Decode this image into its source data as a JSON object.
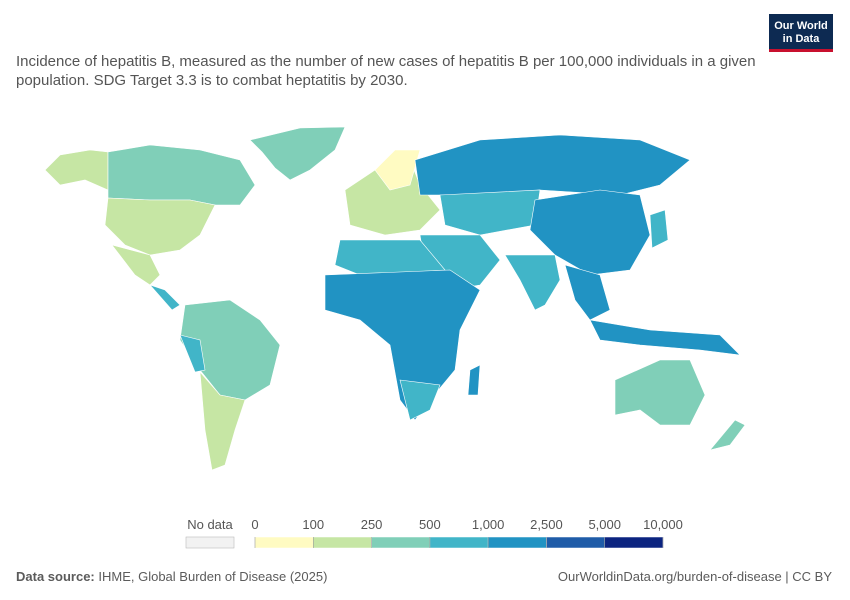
{
  "logo": {
    "line1": "Our World",
    "line2": "in Data"
  },
  "subtitle": "Incidence of hepatitis B, measured as the number of new cases of hepatitis B per 100,000 individuals in a given population. SDG Target 3.3 is to combat heptatitis by 2030.",
  "legend": {
    "no_data": "No data",
    "ticks": [
      0,
      100,
      250,
      500,
      {
        "value": 1000,
        "label": "1,000"
      },
      {
        "value": 2500,
        "label": "2,500"
      },
      {
        "value": 5000,
        "label": "5,000"
      },
      {
        "value": 10000,
        "label": "10,000"
      }
    ],
    "colors": [
      "#fffbc2",
      "#c6e6a4",
      "#80cfb8",
      "#41b5c8",
      "#2193c3",
      "#1f5ca8",
      "#0c2480"
    ]
  },
  "source": {
    "label": "Data source:",
    "text": "IHME, Global Burden of Disease (2025)"
  },
  "url": "OurWorldinData.org/burden-of-disease | CC BY"
}
